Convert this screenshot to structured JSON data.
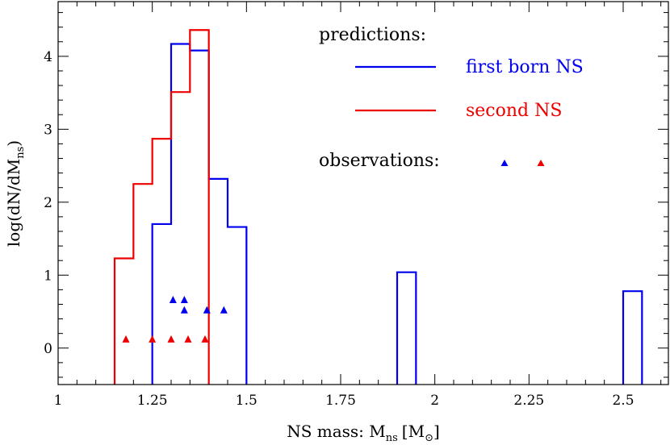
{
  "chart_data": {
    "type": "histogram",
    "xlabel_main": "NS mass: M",
    "xlabel_sub": "ns",
    "xlabel_unit_open": "[M",
    "xlabel_unit_sub": "⊙",
    "xlabel_unit_close": "]",
    "ylabel_main": "log(dN/dM",
    "ylabel_sub": "ns",
    "ylabel_close": ")",
    "xlim": [
      1.0,
      2.62
    ],
    "ylim": [
      -0.5,
      4.75
    ],
    "xticks": [
      {
        "value": 1,
        "label": "1"
      },
      {
        "value": 1.25,
        "label": "1.25"
      },
      {
        "value": 1.5,
        "label": "1.5"
      },
      {
        "value": 1.75,
        "label": "1.75"
      },
      {
        "value": 2,
        "label": "2"
      },
      {
        "value": 2.25,
        "label": "2.25"
      },
      {
        "value": 2.5,
        "label": "2.5"
      }
    ],
    "yticks": [
      {
        "value": 0,
        "label": "0"
      },
      {
        "value": 1,
        "label": "1"
      },
      {
        "value": 2,
        "label": "2"
      },
      {
        "value": 3,
        "label": "3"
      },
      {
        "value": 4,
        "label": "4"
      }
    ],
    "legend": {
      "predictions_label": "predictions:",
      "observations_label": "observations:",
      "entries": [
        {
          "name": "first born NS",
          "color": "#0000ee"
        },
        {
          "name": "second NS",
          "color": "#ee0000"
        }
      ]
    },
    "series": [
      {
        "name": "first born NS",
        "color": "#0000ee",
        "bins": [
          {
            "x0": 1.25,
            "x1": 1.3,
            "y": 1.7
          },
          {
            "x0": 1.3,
            "x1": 1.35,
            "y": 4.17
          },
          {
            "x0": 1.35,
            "x1": 1.4,
            "y": 4.08
          },
          {
            "x0": 1.4,
            "x1": 1.45,
            "y": 2.32
          },
          {
            "x0": 1.45,
            "x1": 1.5,
            "y": 1.66
          },
          {
            "x0": 1.9,
            "x1": 1.95,
            "y": 1.04
          },
          {
            "x0": 2.5,
            "x1": 2.55,
            "y": 0.78
          }
        ],
        "observations": [
          {
            "x": 1.305,
            "y": 0.66
          },
          {
            "x": 1.335,
            "y": 0.66
          },
          {
            "x": 1.335,
            "y": 0.52
          },
          {
            "x": 1.395,
            "y": 0.52
          },
          {
            "x": 1.44,
            "y": 0.52
          }
        ]
      },
      {
        "name": "second NS",
        "color": "#ee0000",
        "bins": [
          {
            "x0": 1.15,
            "x1": 1.2,
            "y": 1.23
          },
          {
            "x0": 1.2,
            "x1": 1.25,
            "y": 2.25
          },
          {
            "x0": 1.25,
            "x1": 1.3,
            "y": 2.87
          },
          {
            "x0": 1.3,
            "x1": 1.35,
            "y": 3.51
          },
          {
            "x0": 1.35,
            "x1": 1.4,
            "y": 4.36
          }
        ],
        "observations": [
          {
            "x": 1.18,
            "y": 0.12
          },
          {
            "x": 1.25,
            "y": 0.12
          },
          {
            "x": 1.3,
            "y": 0.12
          },
          {
            "x": 1.345,
            "y": 0.12
          },
          {
            "x": 1.39,
            "y": 0.12
          }
        ]
      }
    ]
  }
}
